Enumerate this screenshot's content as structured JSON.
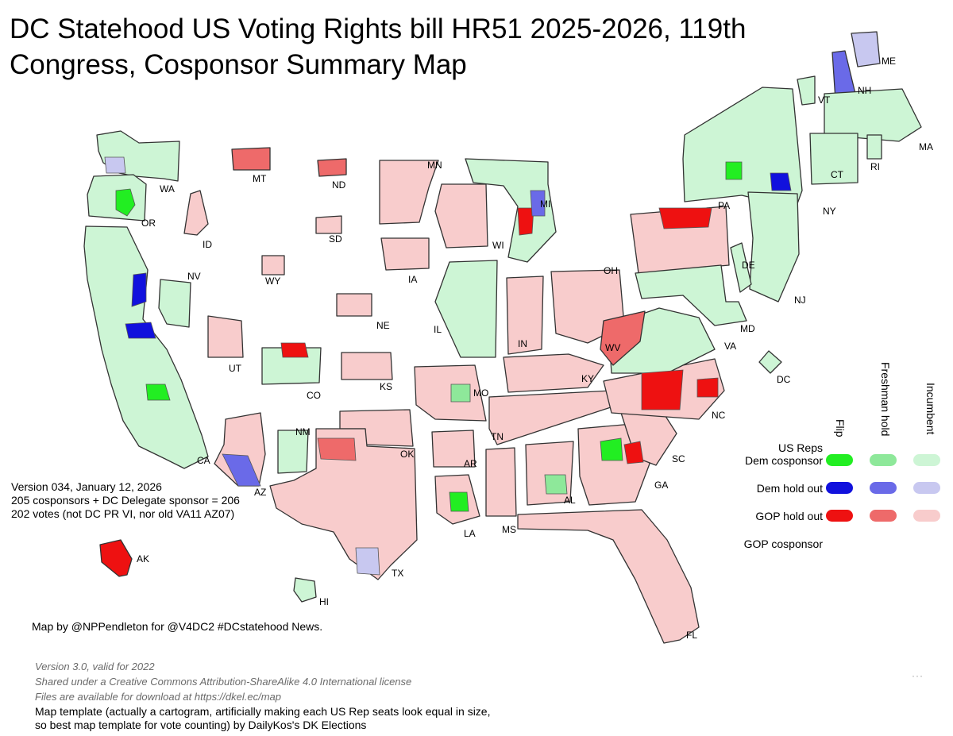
{
  "title": {
    "line1": "DC Statehood US Voting Rights bill HR51 2025-2026, 119th",
    "line2": "Congress, Cosponsor Summary Map"
  },
  "colors": {
    "flip_dem": "#22ee22",
    "freshman_dem": "#8ee89a",
    "incumbent_dem": "#cdf5d5",
    "flip_holdout": "#1111dd",
    "freshman_holdout": "#6a6ae8",
    "incumbent_holdout": "#c8c8f0",
    "flip_gop": "#ee1111",
    "freshman_gop": "#ee6a6a",
    "incumbent_gop": "#f8cccc",
    "border": "#333333"
  },
  "states": [
    {
      "abbr": "WA",
      "fill": "incumbent_dem"
    },
    {
      "abbr": "OR",
      "fill": "incumbent_dem"
    },
    {
      "abbr": "CA",
      "fill": "incumbent_dem"
    },
    {
      "abbr": "ID",
      "fill": "incumbent_gop"
    },
    {
      "abbr": "NV",
      "fill": "incumbent_dem"
    },
    {
      "abbr": "AZ",
      "fill": "incumbent_gop"
    },
    {
      "abbr": "MT",
      "fill": "freshman_gop"
    },
    {
      "abbr": "WY",
      "fill": "incumbent_gop"
    },
    {
      "abbr": "UT",
      "fill": "incumbent_gop"
    },
    {
      "abbr": "CO",
      "fill": "incumbent_dem"
    },
    {
      "abbr": "NM",
      "fill": "incumbent_dem"
    },
    {
      "abbr": "ND",
      "fill": "freshman_gop"
    },
    {
      "abbr": "SD",
      "fill": "incumbent_gop"
    },
    {
      "abbr": "NE",
      "fill": "incumbent_gop"
    },
    {
      "abbr": "KS",
      "fill": "incumbent_gop"
    },
    {
      "abbr": "OK",
      "fill": "incumbent_gop"
    },
    {
      "abbr": "TX",
      "fill": "incumbent_gop"
    },
    {
      "abbr": "MN",
      "fill": "incumbent_gop"
    },
    {
      "abbr": "IA",
      "fill": "incumbent_gop"
    },
    {
      "abbr": "MO",
      "fill": "incumbent_gop"
    },
    {
      "abbr": "AR",
      "fill": "incumbent_gop"
    },
    {
      "abbr": "LA",
      "fill": "incumbent_gop"
    },
    {
      "abbr": "WI",
      "fill": "incumbent_gop"
    },
    {
      "abbr": "IL",
      "fill": "incumbent_dem"
    },
    {
      "abbr": "MI",
      "fill": "incumbent_dem"
    },
    {
      "abbr": "IN",
      "fill": "incumbent_gop"
    },
    {
      "abbr": "OH",
      "fill": "incumbent_gop"
    },
    {
      "abbr": "KY",
      "fill": "incumbent_gop"
    },
    {
      "abbr": "TN",
      "fill": "incumbent_gop"
    },
    {
      "abbr": "MS",
      "fill": "incumbent_gop"
    },
    {
      "abbr": "AL",
      "fill": "incumbent_gop"
    },
    {
      "abbr": "GA",
      "fill": "incumbent_gop"
    },
    {
      "abbr": "FL",
      "fill": "incumbent_gop"
    },
    {
      "abbr": "SC",
      "fill": "incumbent_gop"
    },
    {
      "abbr": "NC",
      "fill": "incumbent_gop"
    },
    {
      "abbr": "VA",
      "fill": "incumbent_dem"
    },
    {
      "abbr": "WV",
      "fill": "freshman_gop"
    },
    {
      "abbr": "PA",
      "fill": "incumbent_gop"
    },
    {
      "abbr": "NY",
      "fill": "incumbent_dem"
    },
    {
      "abbr": "NJ",
      "fill": "incumbent_dem"
    },
    {
      "abbr": "DE",
      "fill": "incumbent_dem"
    },
    {
      "abbr": "MD",
      "fill": "incumbent_dem"
    },
    {
      "abbr": "DC",
      "fill": "incumbent_dem"
    },
    {
      "abbr": "VT",
      "fill": "incumbent_dem"
    },
    {
      "abbr": "NH",
      "fill": "freshman_holdout"
    },
    {
      "abbr": "ME",
      "fill": "incumbent_holdout"
    },
    {
      "abbr": "MA",
      "fill": "incumbent_dem"
    },
    {
      "abbr": "CT",
      "fill": "incumbent_dem"
    },
    {
      "abbr": "RI",
      "fill": "incumbent_dem"
    },
    {
      "abbr": "AK",
      "fill": "flip_gop"
    },
    {
      "abbr": "HI",
      "fill": "incumbent_dem"
    }
  ],
  "info": {
    "version": "Version 034, January 12, 2026",
    "cosponsors": "205 cosponsors + DC Delegate sponsor = 206",
    "votes": "202 votes (not DC PR VI, nor old VA11 AZ07)"
  },
  "credit": "Map by @NPPendleton for @V4DC2 #DCstatehood News.",
  "license": {
    "line1": "Version 3.0, valid for 2022",
    "line2": "Shared under a Creative Commons Attribution-ShareAlike 4.0 International license",
    "line3": "Files are available for download at https://dkel.ec/map"
  },
  "template_note": {
    "line1": "Map template (actually a cartogram, artificially making each US Rep seats look equal in size,",
    "line2": "so best map template for vote counting) by DailyKos's DK Elections"
  },
  "legend": {
    "col_flip": "Flip",
    "col_freshman": "Freshman hold",
    "col_incumbent": "Incumbent",
    "header_line1": "US Reps",
    "row_dem": "Dem cosponsor",
    "row_holdout": "Dem hold out",
    "row_gop_holdout": "GOP hold out",
    "row_gop_cosponsor": "GOP cosponsor"
  }
}
